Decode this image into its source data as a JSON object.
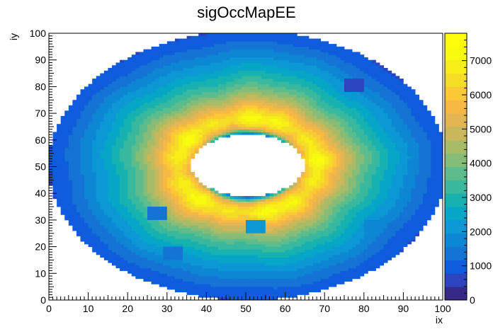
{
  "chart_data": {
    "type": "heatmap",
    "title": "sigOccMapEE",
    "xlabel": "ix",
    "ylabel": "iy",
    "xlim": [
      0,
      100
    ],
    "ylim": [
      0,
      100
    ],
    "x_ticks": [
      0,
      10,
      20,
      30,
      40,
      50,
      60,
      70,
      80,
      90,
      100
    ],
    "y_ticks": [
      0,
      10,
      20,
      30,
      40,
      50,
      60,
      70,
      80,
      90,
      100
    ],
    "bins": {
      "nx": 100,
      "ny": 100
    },
    "geometry": {
      "center": [
        50.5,
        50.5
      ],
      "inner_radius": 11.5,
      "outer_radius": 50.5
    },
    "z_range": [
      0,
      7800
    ],
    "z_ticks": [
      0,
      1000,
      2000,
      3000,
      4000,
      5000,
      6000,
      7000
    ],
    "colorbar_levels": 20,
    "profile": {
      "r": [
        11.5,
        12.5,
        14,
        16,
        18,
        21,
        24,
        27,
        30,
        33,
        36,
        39,
        42,
        45,
        48,
        50.5
      ],
      "value": [
        500,
        2800,
        5400,
        6500,
        6900,
        6000,
        5000,
        4200,
        3500,
        3000,
        2500,
        2100,
        1700,
        1300,
        1000,
        800
      ]
    },
    "patches": [
      {
        "ix": 76,
        "iy": 79,
        "w": 5,
        "h": 5,
        "value": 600
      },
      {
        "ix": 26,
        "iy": 31,
        "w": 5,
        "h": 5,
        "value": 1500
      },
      {
        "ix": 51,
        "iy": 26,
        "w": 5,
        "h": 5,
        "value": 2100
      },
      {
        "ix": 30,
        "iy": 16,
        "w": 5,
        "h": 5,
        "value": 1300
      },
      {
        "ix": 81,
        "iy": 26,
        "w": 5,
        "h": 5,
        "value": 1600
      }
    ],
    "palette": [
      "#352a87",
      "#2c44bf",
      "#0f5cdd",
      "#1473d4",
      "#0d87d3",
      "#0b98d4",
      "#06a7c6",
      "#17b2b0",
      "#38b99e",
      "#5cbc8b",
      "#84bc78",
      "#a8bb66",
      "#c8b85b",
      "#e3b553",
      "#f7b843",
      "#fbc935",
      "#f5dc25",
      "#f7ee17",
      "#f9fb0e",
      "#fdfc0b"
    ]
  }
}
